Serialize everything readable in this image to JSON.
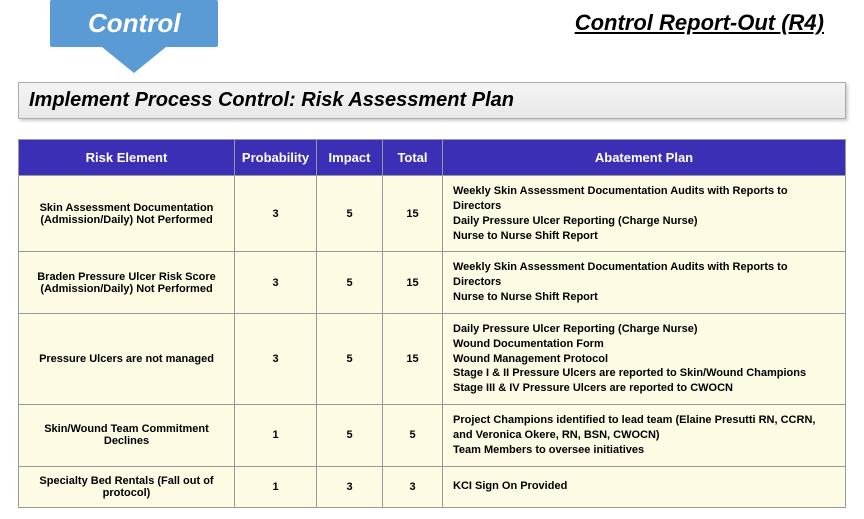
{
  "header": {
    "badge_label": "Control",
    "report_title": "Control Report-Out (R4)"
  },
  "section_title": "Implement Process Control:  Risk Assessment Plan",
  "table": {
    "header_bg": "#3b2fb5",
    "header_fg": "#ffffff",
    "cell_bg": "#fdfbe3",
    "border_color": "#999999",
    "columns": [
      "Risk Element",
      "Probability",
      "Impact",
      "Total",
      "Abatement Plan"
    ],
    "rows": [
      {
        "risk": "Skin Assessment Documentation (Admission/Daily) Not Performed",
        "probability": "3",
        "impact": "5",
        "total": "15",
        "plan": [
          "Weekly Skin Assessment Documentation Audits with Reports to Directors",
          "Daily Pressure Ulcer Reporting (Charge Nurse)",
          "Nurse to Nurse Shift Report"
        ]
      },
      {
        "risk": "Braden Pressure Ulcer Risk Score (Admission/Daily) Not Performed",
        "probability": "3",
        "impact": "5",
        "total": "15",
        "plan": [
          "Weekly Skin Assessment Documentation Audits with Reports to Directors",
          "Nurse to Nurse Shift Report"
        ]
      },
      {
        "risk": "Pressure Ulcers are not managed",
        "probability": "3",
        "impact": "5",
        "total": "15",
        "plan": [
          "Daily Pressure Ulcer Reporting (Charge Nurse)",
          "Wound Documentation Form",
          "Wound Management Protocol",
          "Stage I & II Pressure Ulcers are reported to Skin/Wound Champions",
          "Stage III & IV Pressure Ulcers are reported to CWOCN"
        ]
      },
      {
        "risk": "Skin/Wound Team Commitment Declines",
        "probability": "1",
        "impact": "5",
        "total": "5",
        "plan": [
          "Project Champions identified to lead team (Elaine Presutti RN, CCRN, and Veronica Okere, RN, BSN, CWOCN)",
          "Team Members to oversee initiatives"
        ]
      },
      {
        "risk": "Specialty Bed Rentals (Fall out of protocol)",
        "probability": "1",
        "impact": "3",
        "total": "3",
        "plan": [
          "KCI Sign On Provided"
        ]
      }
    ]
  },
  "colors": {
    "badge_bg": "#5b9bd5",
    "badge_fg": "#ffffff"
  }
}
